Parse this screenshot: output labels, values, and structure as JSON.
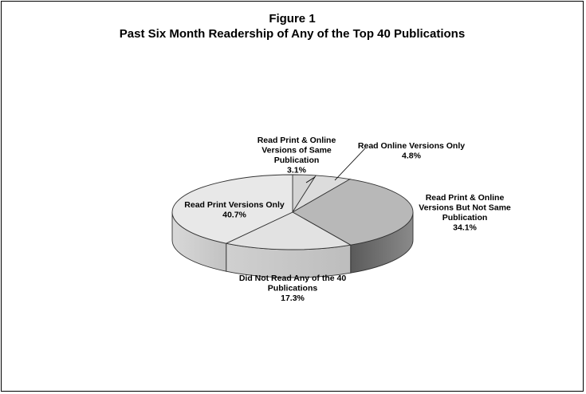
{
  "chart_data": {
    "type": "pie",
    "title": "Figure 1",
    "subtitle": "Past Six Month Readership of Any of the Top 40 Publications",
    "slices": [
      {
        "label": [
          "Read Print & Online",
          "Versions of Same",
          "Publication"
        ],
        "value_text": "3.1%",
        "value": 3.1
      },
      {
        "label": [
          "Read Online Versions Only"
        ],
        "value_text": "4.8%",
        "value": 4.8
      },
      {
        "label": [
          "Read Print & Online",
          "Versions But Not Same",
          "Publication"
        ],
        "value_text": "34.1%",
        "value": 34.1
      },
      {
        "label": [
          "Did Not Read Any of the 40",
          "Publications"
        ],
        "value_text": "17.3%",
        "value": 17.3
      },
      {
        "label": [
          "Read Print Versions Only"
        ],
        "value_text": "40.7%",
        "value": 40.7
      }
    ],
    "colors": [
      "#d4d4d4",
      "#dcdcdc",
      "#b8b8b8",
      "#e2e2e2",
      "#e8e8e8"
    ]
  }
}
